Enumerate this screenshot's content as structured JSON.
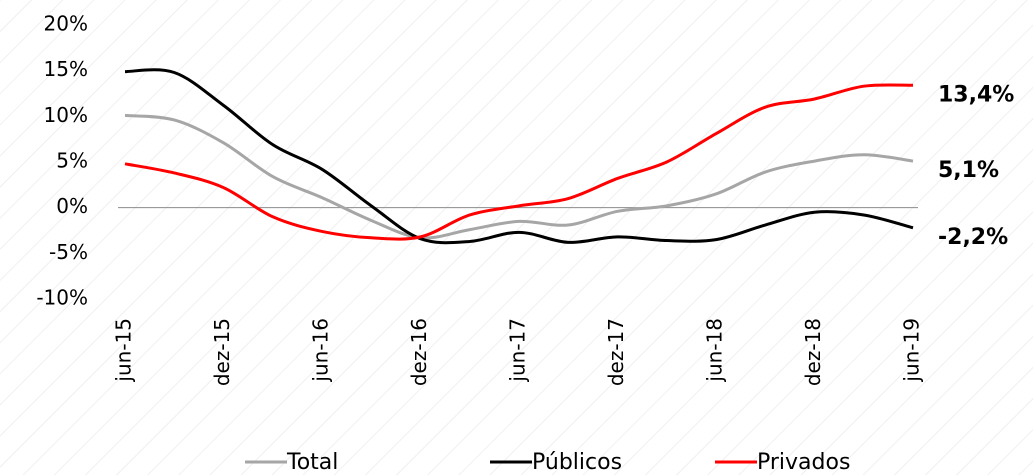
{
  "chart_data": {
    "type": "line",
    "categories": [
      "jun-15",
      null,
      "dez-15",
      null,
      "jun-16",
      null,
      "dez-16",
      null,
      "jun-17",
      null,
      "dez-17",
      null,
      "jun-18",
      null,
      "dez-18",
      null,
      "jun-19"
    ],
    "series": [
      {
        "name": "Total",
        "color": "#a6a6a6",
        "values": [
          10.1,
          9.6,
          7.1,
          3.4,
          1.1,
          -1.4,
          -3.3,
          -2.4,
          -1.5,
          -1.9,
          -0.4,
          0.2,
          1.5,
          3.9,
          5.1,
          5.8,
          5.1
        ],
        "value_labels": [
          null,
          null,
          null,
          null,
          null,
          null,
          null,
          null,
          null,
          null,
          null,
          null,
          null,
          null,
          null,
          null,
          "5,1%"
        ]
      },
      {
        "name": "Públicos",
        "color": "#000000",
        "values": [
          14.9,
          14.8,
          11.2,
          6.9,
          4.2,
          0.2,
          -3.4,
          -3.7,
          -2.7,
          -3.8,
          -3.2,
          -3.6,
          -3.5,
          -1.9,
          -0.5,
          -0.8,
          -2.2
        ],
        "value_labels": [
          null,
          null,
          null,
          null,
          null,
          null,
          null,
          null,
          null,
          null,
          null,
          null,
          null,
          null,
          null,
          null,
          "-2,2%"
        ]
      },
      {
        "name": "Privados",
        "color": "#ff0000",
        "values": [
          4.8,
          3.8,
          2.2,
          -1.0,
          -2.6,
          -3.3,
          -3.2,
          -0.8,
          0.2,
          1.0,
          3.2,
          5.0,
          8.1,
          11.0,
          11.9,
          13.3,
          13.4
        ],
        "value_labels": [
          null,
          null,
          null,
          null,
          null,
          null,
          null,
          null,
          null,
          null,
          null,
          null,
          null,
          null,
          null,
          null,
          "13,4%"
        ]
      }
    ],
    "ylim": [
      -10,
      20
    ],
    "yticks": [
      {
        "value": -10,
        "label": "-10%"
      },
      {
        "value": -5,
        "label": "-5%"
      },
      {
        "value": 0,
        "label": "0%"
      },
      {
        "value": 5,
        "label": "5%"
      },
      {
        "value": 10,
        "label": "10%"
      },
      {
        "value": 15,
        "label": "15%"
      },
      {
        "value": 20,
        "label": "20%"
      }
    ],
    "legend": "bottom"
  }
}
